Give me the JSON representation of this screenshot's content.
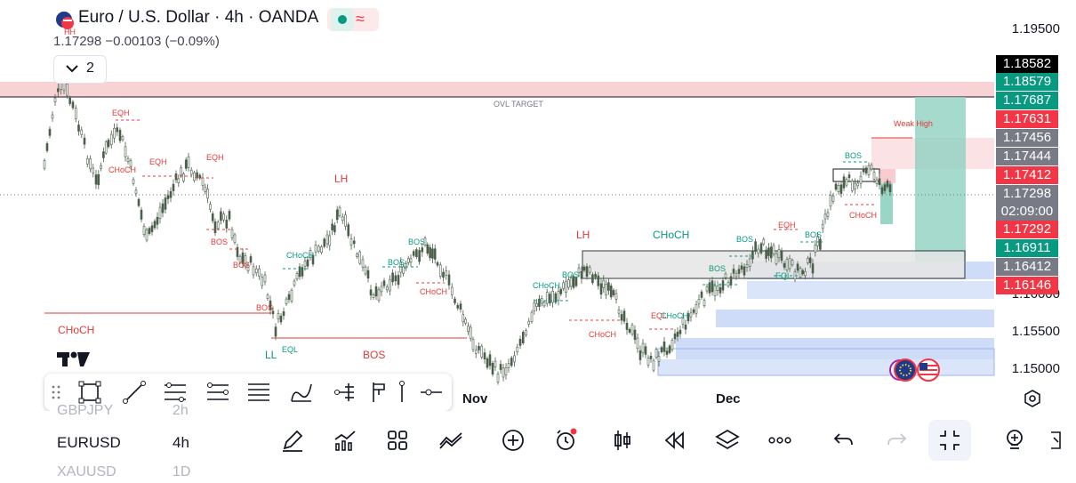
{
  "header": {
    "title": "Euro / U.S. Dollar · 4h · OANDA",
    "quote": "1.17298  −0.00103 (−0.09%)",
    "hh_label": "HH",
    "collapse_count": "2"
  },
  "price_axis": {
    "ticks": [
      "1.19500",
      "1.15500",
      "1.15000"
    ],
    "partial_tick": "1.16000",
    "tags": [
      {
        "text": "1.18582",
        "color": "#000000"
      },
      {
        "text": "1.18579",
        "color": "#089981"
      },
      {
        "text": "1.17687",
        "color": "#089981"
      },
      {
        "text": "1.17631",
        "color": "#f23645"
      },
      {
        "text": "1.17456",
        "color": "#787b86"
      },
      {
        "text": "1.17444",
        "color": "#787b86"
      },
      {
        "text": "1.17412",
        "color": "#f23645"
      },
      {
        "text": "1.17298",
        "color": "#787b86"
      },
      {
        "text": "02:09:00",
        "color": "#787b86"
      },
      {
        "text": "1.17292",
        "color": "#f23645"
      },
      {
        "text": "1.16911",
        "color": "#089981"
      },
      {
        "text": "1.16412",
        "color": "#787b86"
      },
      {
        "text": "1.16146",
        "color": "#f23645"
      }
    ]
  },
  "time_axis": {
    "labels": [
      "Nov",
      "Dec"
    ]
  },
  "annotations": {
    "ovl_target": "OVL TARGET",
    "weak_high": "Weak High",
    "eqh": "EQH",
    "choch": "CHoCH",
    "bos": "BOS",
    "lh": "LH",
    "ll": "LL",
    "eql": "EQL"
  },
  "symbols": [
    {
      "name": "GBPJPY",
      "interval": "2h"
    },
    {
      "name": "EURUSD",
      "interval": "4h"
    },
    {
      "name": "XAUUSD",
      "interval": "1D"
    }
  ],
  "colors": {
    "up": "#089981",
    "down": "#f23645",
    "candle": "#4a5e4a",
    "supply_zone": "#f8d3d6",
    "demand_zone": "#cfdcf8",
    "target_zone": "#8fd1c0"
  },
  "draw_tools": [
    "rectangle-icon",
    "trend-line-icon",
    "fib-retracement-icon",
    "fib-channel-icon",
    "parallel-channel-icon",
    "brush-icon",
    "long-position-icon",
    "pitchfork-icon",
    "ruler-icon",
    "horizontal-ray-icon"
  ],
  "bottom_tools": [
    "draw-icon",
    "indicators-icon",
    "layout-icon",
    "compare-icon",
    "add-icon",
    "alert-icon",
    "candles-icon",
    "replay-icon",
    "layers-icon",
    "more-icon",
    "undo-icon",
    "redo-icon",
    "fullscreen-exit-icon",
    "ideas-icon"
  ]
}
